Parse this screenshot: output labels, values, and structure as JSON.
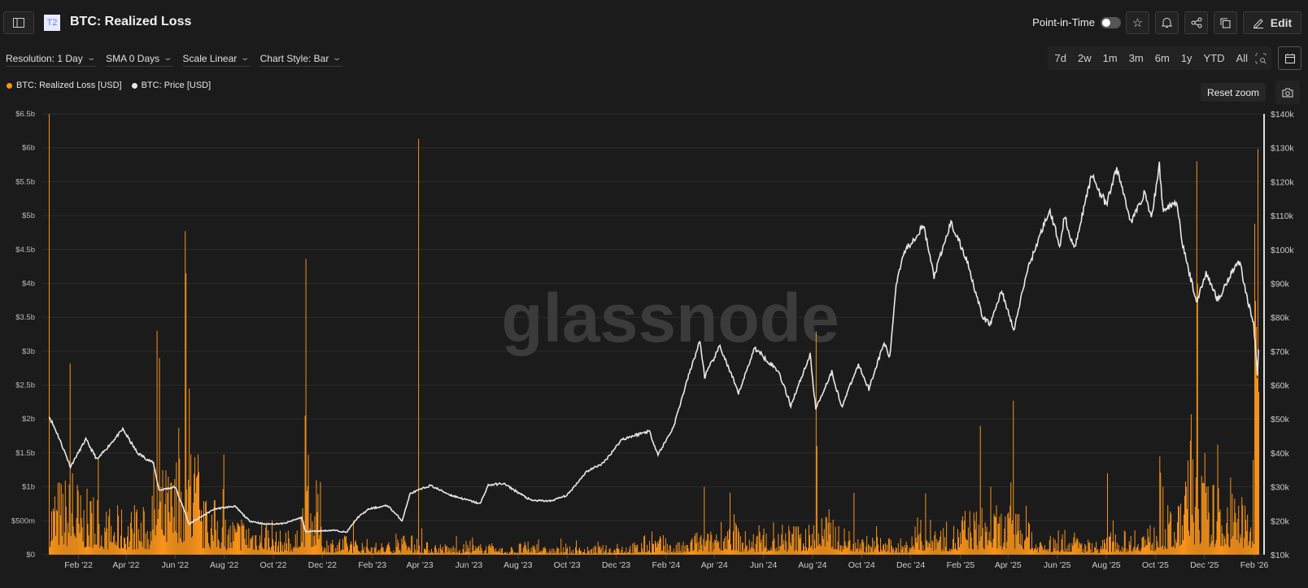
{
  "header": {
    "title": "BTC: Realized Loss",
    "badge": "T2",
    "point_in_time_label": "Point-in-Time",
    "point_in_time_on": false,
    "edit_label": "Edit"
  },
  "toolbar": {
    "resolution": "Resolution: 1 Day",
    "sma": "SMA 0 Days",
    "scale": "Scale Linear",
    "chart_style": "Chart Style: Bar"
  },
  "ranges": [
    "7d",
    "2w",
    "1m",
    "3m",
    "6m",
    "1y",
    "YTD",
    "All"
  ],
  "reset_zoom": "Reset zoom",
  "watermark": "glassnode",
  "colors": {
    "loss": "#f7931a",
    "price": "#e8e8e8",
    "background": "#1b1b1b",
    "grid": "#2c2c2c"
  },
  "chart_data": {
    "type": "bar+line",
    "legend": [
      {
        "name": "BTC: Realized Loss [USD]",
        "color": "#f7931a"
      },
      {
        "name": "BTC: Price [USD]",
        "color": "#e8e8e8"
      }
    ],
    "legend_placement": "top-left",
    "grid": true,
    "x_range": [
      "2021-12-26",
      "2026-02-06"
    ],
    "x_ticks": [
      "Feb '22",
      "Apr '22",
      "Jun '22",
      "Aug '22",
      "Oct '22",
      "Dec '22",
      "Feb '23",
      "Apr '23",
      "Jun '23",
      "Aug '23",
      "Oct '23",
      "Dec '23",
      "Feb '24",
      "Apr '24",
      "Jun '24",
      "Aug '24",
      "Oct '24",
      "Dec '24",
      "Feb '25",
      "Apr '25",
      "Jun '25",
      "Aug '25",
      "Oct '25",
      "Dec '25",
      "Feb '26"
    ],
    "x_tick_dates": [
      "2022-02-01",
      "2022-04-01",
      "2022-06-01",
      "2022-08-01",
      "2022-10-01",
      "2022-12-01",
      "2023-02-01",
      "2023-04-01",
      "2023-06-01",
      "2023-08-01",
      "2023-10-01",
      "2023-12-01",
      "2024-02-01",
      "2024-04-01",
      "2024-06-01",
      "2024-08-01",
      "2024-10-01",
      "2024-12-01",
      "2025-02-01",
      "2025-04-01",
      "2025-06-01",
      "2025-08-01",
      "2025-10-01",
      "2025-12-01",
      "2026-02-01"
    ],
    "left_axis": {
      "ylim": [
        0,
        6.5
      ],
      "unit": "billion USD",
      "ticks": [
        "$0",
        "$500m",
        "$1b",
        "$1.5b",
        "$2b",
        "$2.5b",
        "$3b",
        "$3.5b",
        "$4b",
        "$4.5b",
        "$5b",
        "$5.5b",
        "$6b",
        "$6.5b"
      ]
    },
    "right_axis": {
      "ylim": [
        10000,
        140000
      ],
      "ticks": [
        "$10k",
        "$20k",
        "$30k",
        "$40k",
        "$50k",
        "$60k",
        "$70k",
        "$80k",
        "$90k",
        "$100k",
        "$110k",
        "$120k",
        "$130k",
        "$140k"
      ]
    },
    "price_series": [
      [
        "2021-12-26",
        51000
      ],
      [
        "2022-01-05",
        46000
      ],
      [
        "2022-01-22",
        36000
      ],
      [
        "2022-02-10",
        44000
      ],
      [
        "2022-02-24",
        38000
      ],
      [
        "2022-03-28",
        47000
      ],
      [
        "2022-04-15",
        40000
      ],
      [
        "2022-05-05",
        37000
      ],
      [
        "2022-05-12",
        29000
      ],
      [
        "2022-06-01",
        30000
      ],
      [
        "2022-06-14",
        22000
      ],
      [
        "2022-06-18",
        19000
      ],
      [
        "2022-07-20",
        23500
      ],
      [
        "2022-08-14",
        24300
      ],
      [
        "2022-09-01",
        20000
      ],
      [
        "2022-09-20",
        19000
      ],
      [
        "2022-10-15",
        19200
      ],
      [
        "2022-11-05",
        21000
      ],
      [
        "2022-11-10",
        16800
      ],
      [
        "2022-12-15",
        17200
      ],
      [
        "2022-12-31",
        16600
      ],
      [
        "2023-01-14",
        21000
      ],
      [
        "2023-01-28",
        23500
      ],
      [
        "2023-02-20",
        24500
      ],
      [
        "2023-03-10",
        20000
      ],
      [
        "2023-03-20",
        28000
      ],
      [
        "2023-04-14",
        30400
      ],
      [
        "2023-05-10",
        27500
      ],
      [
        "2023-06-15",
        25000
      ],
      [
        "2023-06-25",
        30500
      ],
      [
        "2023-07-14",
        31000
      ],
      [
        "2023-08-17",
        26000
      ],
      [
        "2023-09-10",
        25800
      ],
      [
        "2023-10-01",
        27500
      ],
      [
        "2023-10-25",
        34500
      ],
      [
        "2023-11-15",
        37000
      ],
      [
        "2023-12-08",
        44000
      ],
      [
        "2024-01-11",
        46500
      ],
      [
        "2024-01-22",
        39500
      ],
      [
        "2024-02-10",
        47500
      ],
      [
        "2024-02-28",
        62000
      ],
      [
        "2024-03-14",
        73000
      ],
      [
        "2024-03-20",
        62500
      ],
      [
        "2024-04-08",
        71500
      ],
      [
        "2024-05-01",
        57500
      ],
      [
        "2024-05-21",
        71000
      ],
      [
        "2024-06-20",
        64000
      ],
      [
        "2024-07-05",
        54000
      ],
      [
        "2024-07-29",
        69000
      ],
      [
        "2024-08-05",
        53000
      ],
      [
        "2024-08-25",
        64000
      ],
      [
        "2024-09-06",
        53500
      ],
      [
        "2024-09-27",
        66000
      ],
      [
        "2024-10-10",
        59000
      ],
      [
        "2024-10-29",
        72500
      ],
      [
        "2024-11-05",
        68000
      ],
      [
        "2024-11-13",
        90000
      ],
      [
        "2024-11-22",
        99000
      ],
      [
        "2024-12-17",
        107000
      ],
      [
        "2024-12-30",
        92000
      ],
      [
        "2025-01-20",
        108000
      ],
      [
        "2025-02-10",
        96000
      ],
      [
        "2025-02-28",
        80000
      ],
      [
        "2025-03-10",
        78000
      ],
      [
        "2025-03-24",
        88000
      ],
      [
        "2025-04-08",
        76000
      ],
      [
        "2025-04-25",
        94000
      ],
      [
        "2025-05-22",
        111500
      ],
      [
        "2025-06-05",
        101000
      ],
      [
        "2025-06-10",
        110000
      ],
      [
        "2025-06-22",
        100000
      ],
      [
        "2025-07-14",
        122000
      ],
      [
        "2025-08-01",
        113000
      ],
      [
        "2025-08-14",
        124000
      ],
      [
        "2025-09-01",
        108000
      ],
      [
        "2025-09-18",
        117000
      ],
      [
        "2025-09-26",
        109000
      ],
      [
        "2025-10-06",
        125000
      ],
      [
        "2025-10-10",
        112000
      ],
      [
        "2025-10-28",
        114000
      ],
      [
        "2025-11-04",
        101000
      ],
      [
        "2025-11-21",
        84500
      ],
      [
        "2025-12-03",
        93000
      ],
      [
        "2025-12-18",
        85000
      ],
      [
        "2026-01-05",
        94000
      ],
      [
        "2026-01-14",
        96500
      ],
      [
        "2026-01-20",
        89000
      ],
      [
        "2026-01-31",
        78000
      ],
      [
        "2026-02-05",
        63000
      ],
      [
        "2026-02-06",
        70000
      ]
    ],
    "loss_typical_monthly_b": [
      [
        "2021-12",
        0.45
      ],
      [
        "2022-01",
        0.5
      ],
      [
        "2022-02",
        0.4
      ],
      [
        "2022-03",
        0.3
      ],
      [
        "2022-04",
        0.3
      ],
      [
        "2022-05",
        0.55
      ],
      [
        "2022-06",
        0.7
      ],
      [
        "2022-07",
        0.35
      ],
      [
        "2022-08",
        0.25
      ],
      [
        "2022-09",
        0.25
      ],
      [
        "2022-10",
        0.15
      ],
      [
        "2022-11",
        0.45
      ],
      [
        "2022-12",
        0.12
      ],
      [
        "2023-01",
        0.1
      ],
      [
        "2023-02",
        0.08
      ],
      [
        "2023-03",
        0.12
      ],
      [
        "2023-04",
        0.08
      ],
      [
        "2023-05",
        0.07
      ],
      [
        "2023-06",
        0.07
      ],
      [
        "2023-07",
        0.05
      ],
      [
        "2023-08",
        0.08
      ],
      [
        "2023-09",
        0.05
      ],
      [
        "2023-10",
        0.05
      ],
      [
        "2023-11",
        0.06
      ],
      [
        "2023-12",
        0.08
      ],
      [
        "2024-01",
        0.12
      ],
      [
        "2024-02",
        0.08
      ],
      [
        "2024-03",
        0.15
      ],
      [
        "2024-04",
        0.25
      ],
      [
        "2024-05",
        0.15
      ],
      [
        "2024-06",
        0.15
      ],
      [
        "2024-07",
        0.2
      ],
      [
        "2024-08",
        0.28
      ],
      [
        "2024-09",
        0.18
      ],
      [
        "2024-10",
        0.12
      ],
      [
        "2024-11",
        0.1
      ],
      [
        "2024-12",
        0.22
      ],
      [
        "2025-01",
        0.2
      ],
      [
        "2025-02",
        0.3
      ],
      [
        "2025-03",
        0.3
      ],
      [
        "2025-04",
        0.3
      ],
      [
        "2025-05",
        0.12
      ],
      [
        "2025-06",
        0.15
      ],
      [
        "2025-07",
        0.1
      ],
      [
        "2025-08",
        0.15
      ],
      [
        "2025-09",
        0.2
      ],
      [
        "2025-10",
        0.3
      ],
      [
        "2025-11",
        0.6
      ],
      [
        "2025-12",
        0.45
      ],
      [
        "2026-01",
        0.4
      ],
      [
        "2026-02",
        1.6
      ]
    ],
    "loss_spikes_b": [
      [
        "2021-12-26",
        6.5
      ],
      [
        "2022-01-21",
        2.82
      ],
      [
        "2022-01-24",
        1.2
      ],
      [
        "2022-05-09",
        3.3
      ],
      [
        "2022-05-12",
        2.9
      ],
      [
        "2022-06-13",
        4.77
      ],
      [
        "2022-06-14",
        4.15
      ],
      [
        "2022-06-18",
        2.45
      ],
      [
        "2022-11-09",
        2.05
      ],
      [
        "2022-11-10",
        4.36
      ],
      [
        "2023-03-30",
        6.13
      ],
      [
        "2024-03-19",
        1.0
      ],
      [
        "2024-08-05",
        3.29
      ],
      [
        "2024-08-06",
        1.6
      ],
      [
        "2024-12-19",
        0.9
      ],
      [
        "2025-02-25",
        1.9
      ],
      [
        "2025-03-10",
        1.0
      ],
      [
        "2025-04-07",
        2.27
      ],
      [
        "2025-08-02",
        1.2
      ],
      [
        "2025-10-10",
        1.0
      ],
      [
        "2025-11-14",
        2.07
      ],
      [
        "2025-11-21",
        5.8
      ],
      [
        "2025-11-22",
        4.0
      ],
      [
        "2025-12-01",
        1.5
      ],
      [
        "2026-01-30",
        1.4
      ],
      [
        "2026-02-01",
        4.88
      ],
      [
        "2026-02-04",
        2.6
      ],
      [
        "2026-02-05",
        5.98
      ],
      [
        "2026-02-06",
        2.4
      ]
    ]
  }
}
